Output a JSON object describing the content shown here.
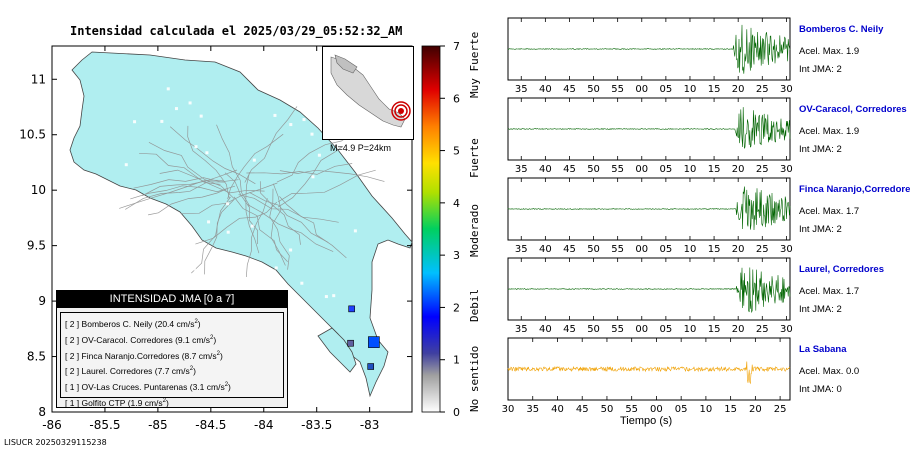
{
  "title": "Intensidad calculada el 2025/03/29_05:52:32_AM",
  "footer": "LISUCR 20250329115238",
  "map": {
    "x_ticks": [
      "-86",
      "-85.5",
      "-85",
      "-84.5",
      "-84",
      "-83.5",
      "-83"
    ],
    "y_ticks": [
      "11",
      "10.5",
      "10",
      "9.5",
      "9",
      "8.5",
      "8"
    ],
    "land_color": "#b0eef0",
    "inset_label": "M=4.9 P=24km",
    "stations": [
      {
        "lon": -83.17,
        "lat": 8.93,
        "color": "#2040ff"
      },
      {
        "lon": -82.96,
        "lat": 8.63,
        "color": "#0050ff"
      },
      {
        "lon": -82.99,
        "lat": 8.41,
        "color": "#2050c0"
      },
      {
        "lon": -83.18,
        "lat": 8.62,
        "color": "#6060a0"
      }
    ]
  },
  "colorbar": {
    "ticks": [
      "0",
      "1",
      "2",
      "3",
      "4",
      "5",
      "6",
      "7"
    ],
    "categories": [
      "No sentido",
      "Debil",
      "Moderado",
      "Fuerte",
      "Muy Fuerte"
    ]
  },
  "legend": {
    "header": "INTENSIDAD JMA [0 a 7]",
    "rows": [
      {
        "jma": "[ 2 ]",
        "name": "Bomberos C. Neily",
        "acc": "(20.4 cm/s",
        "sup": "2",
        "close": ")"
      },
      {
        "jma": "[ 2 ]",
        "name": "OV-Caracol. Corredores",
        "acc": "(9.1 cm/s",
        "sup": "2",
        "close": ")"
      },
      {
        "jma": "[ 2 ]",
        "name": "Finca Naranjo.Corredores",
        "acc": "(8.7 cm/s",
        "sup": "2",
        "close": ")"
      },
      {
        "jma": "[ 2 ]",
        "name": "Laurel. Corredores",
        "acc": "(7.7 cm/s",
        "sup": "2",
        "close": ")"
      },
      {
        "jma": "[ 1 ]",
        "name": "OV-Las Cruces. Puntarenas",
        "acc": "(3.1 cm/s",
        "sup": "2",
        "close": ")"
      },
      {
        "jma": "[ 1 ]",
        "name": "Golfito CTP",
        "acc": "(1.9 cm/s",
        "sup": "2",
        "close": ")"
      }
    ]
  },
  "traces": [
    {
      "station": "Bomberos C. Neily",
      "acel": "Acel. Max. 1.9",
      "jma": "Int JMA: 2",
      "color": "#006400",
      "onset": 57.5,
      "amp": 1.0,
      "ticks": [
        "35",
        "40",
        "45",
        "50",
        "55",
        "00",
        "05",
        "10",
        "15",
        "20",
        "25",
        "30"
      ]
    },
    {
      "station": "OV-Caracol, Corredores",
      "acel": "Acel. Max. 1.9",
      "jma": "Int JMA: 2",
      "color": "#006400",
      "onset": 58.0,
      "amp": 0.85,
      "ticks": [
        "35",
        "40",
        "45",
        "50",
        "55",
        "00",
        "05",
        "10",
        "15",
        "20",
        "25",
        "30"
      ]
    },
    {
      "station": "Finca Naranjo,Corredores",
      "acel": "Acel. Max. 1.7",
      "jma": "Int JMA: 2",
      "color": "#006400",
      "onset": 58.3,
      "amp": 1.0,
      "ticks": [
        "35",
        "40",
        "45",
        "50",
        "55",
        "00",
        "05",
        "10",
        "15",
        "20",
        "25",
        "30"
      ]
    },
    {
      "station": "Laurel, Corredores",
      "acel": "Acel. Max. 1.7",
      "jma": "Int JMA: 2",
      "color": "#006400",
      "onset": 58.5,
      "amp": 1.0,
      "ticks": [
        "35",
        "40",
        "45",
        "50",
        "55",
        "00",
        "05",
        "10",
        "15",
        "20",
        "25",
        "30"
      ]
    },
    {
      "station": "La Sabana",
      "acel": "Acel. Max. 0.0",
      "jma": "Int JMA: 0",
      "color": "#f0a000",
      "onset": 77.0,
      "amp": 0.3,
      "ticks": [
        "30",
        "35",
        "40",
        "45",
        "50",
        "55",
        "00",
        "05",
        "10",
        "15",
        "20",
        "25"
      ]
    }
  ],
  "chart_data": {
    "type": "line",
    "title": "Intensidad calculada el 2025/03/29_05:52:32_AM",
    "xlabel": "Tiempo (s)",
    "series": [
      {
        "name": "Bomberos C. Neily",
        "max_accel": 1.9,
        "jma": 2
      },
      {
        "name": "OV-Caracol, Corredores",
        "max_accel": 1.9,
        "jma": 2
      },
      {
        "name": "Finca Naranjo,Corredores",
        "max_accel": 1.7,
        "jma": 2
      },
      {
        "name": "Laurel, Corredores",
        "max_accel": 1.7,
        "jma": 2
      },
      {
        "name": "La Sabana",
        "max_accel": 0.0,
        "jma": 0
      }
    ],
    "map_xlim": [
      -86,
      -82.6
    ],
    "map_ylim": [
      8,
      11.3
    ],
    "colorbar_range": [
      0,
      7
    ]
  }
}
